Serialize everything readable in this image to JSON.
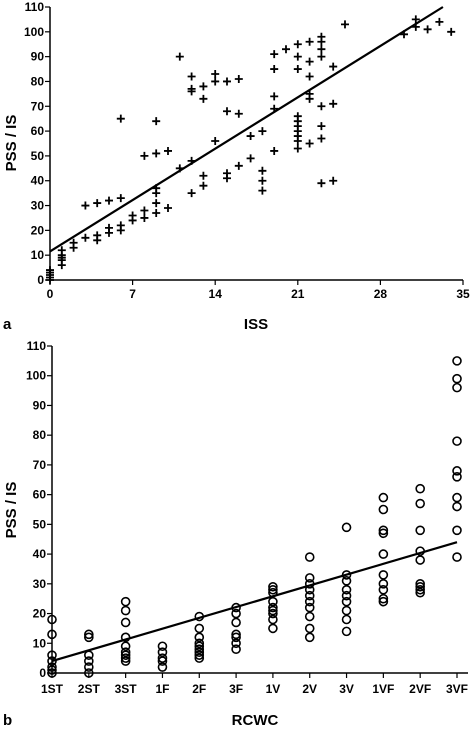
{
  "chart_data": [
    {
      "panel_label": "a",
      "type": "scatter",
      "xlabel": "ISS",
      "ylabel": "PSS / IS",
      "xlim": [
        0,
        35
      ],
      "ylim": [
        0,
        110
      ],
      "xticks": [
        "0",
        "7",
        "14",
        "21",
        "28",
        "35"
      ],
      "yticks": [
        "0",
        "10",
        "20",
        "30",
        "40",
        "50",
        "60",
        "70",
        "80",
        "90",
        "100",
        "110"
      ],
      "marker": "plus",
      "grid": false,
      "points": [
        [
          0,
          0
        ],
        [
          0,
          1
        ],
        [
          0,
          2
        ],
        [
          0,
          3
        ],
        [
          0,
          4
        ],
        [
          1,
          6
        ],
        [
          1,
          8
        ],
        [
          1,
          9
        ],
        [
          1,
          10
        ],
        [
          1,
          12
        ],
        [
          2,
          13
        ],
        [
          2,
          15
        ],
        [
          3,
          17
        ],
        [
          4,
          16
        ],
        [
          4,
          18
        ],
        [
          5,
          19
        ],
        [
          5,
          21
        ],
        [
          6,
          20
        ],
        [
          6,
          22
        ],
        [
          7,
          24
        ],
        [
          7,
          26
        ],
        [
          8,
          25
        ],
        [
          8,
          28
        ],
        [
          9,
          27
        ],
        [
          9,
          31
        ],
        [
          10,
          29
        ],
        [
          3,
          30
        ],
        [
          4,
          31
        ],
        [
          5,
          32
        ],
        [
          6,
          33
        ],
        [
          9,
          35
        ],
        [
          9,
          37
        ],
        [
          8,
          50
        ],
        [
          9,
          51
        ],
        [
          10,
          52
        ],
        [
          6,
          65
        ],
        [
          9,
          64
        ],
        [
          11,
          90
        ],
        [
          11,
          45
        ],
        [
          12,
          48
        ],
        [
          12,
          35
        ],
        [
          13,
          38
        ],
        [
          13,
          42
        ],
        [
          12,
          76
        ],
        [
          12,
          77
        ],
        [
          12,
          82
        ],
        [
          13,
          78
        ],
        [
          13,
          73
        ],
        [
          14,
          80
        ],
        [
          14,
          83
        ],
        [
          15,
          80
        ],
        [
          16,
          81
        ],
        [
          14,
          56
        ],
        [
          15,
          68
        ],
        [
          16,
          67
        ],
        [
          15,
          41
        ],
        [
          15,
          43
        ],
        [
          16,
          46
        ],
        [
          17,
          49
        ],
        [
          17,
          58
        ],
        [
          18,
          60
        ],
        [
          18,
          44
        ],
        [
          18,
          40
        ],
        [
          18,
          36
        ],
        [
          19,
          52
        ],
        [
          19,
          69
        ],
        [
          19,
          74
        ],
        [
          19,
          85
        ],
        [
          19,
          91
        ],
        [
          20,
          93
        ],
        [
          21,
          95
        ],
        [
          21,
          90
        ],
        [
          21,
          85
        ],
        [
          22,
          82
        ],
        [
          22,
          88
        ],
        [
          22,
          96
        ],
        [
          23,
          93
        ],
        [
          23,
          90
        ],
        [
          23,
          96
        ],
        [
          23,
          98
        ],
        [
          24,
          86
        ],
        [
          25,
          103
        ],
        [
          21,
          53
        ],
        [
          21,
          56
        ],
        [
          21,
          58
        ],
        [
          21,
          60
        ],
        [
          21,
          62
        ],
        [
          21,
          64
        ],
        [
          21,
          66
        ],
        [
          22,
          75
        ],
        [
          22,
          73
        ],
        [
          22,
          55
        ],
        [
          23,
          57
        ],
        [
          23,
          62
        ],
        [
          23,
          70
        ],
        [
          24,
          71
        ],
        [
          23,
          39
        ],
        [
          24,
          40
        ],
        [
          30,
          99
        ],
        [
          31,
          102
        ],
        [
          31,
          105
        ],
        [
          32,
          101
        ],
        [
          33,
          104
        ],
        [
          34,
          100
        ]
      ],
      "regression_line": {
        "x": [
          0,
          33.3
        ],
        "y": [
          11.5,
          110
        ]
      }
    },
    {
      "panel_label": "b",
      "type": "scatter",
      "xlabel": "RCWC",
      "ylabel": "PSS / IS",
      "categories": [
        "1ST",
        "2ST",
        "3ST",
        "1F",
        "2F",
        "3F",
        "1V",
        "2V",
        "3V",
        "1VF",
        "2VF",
        "3VF"
      ],
      "ylim": [
        0,
        110
      ],
      "yticks": [
        "0",
        "10",
        "20",
        "30",
        "40",
        "50",
        "60",
        "70",
        "80",
        "90",
        "100",
        "110"
      ],
      "marker": "circle",
      "grid": false,
      "points": [
        [
          "1ST",
          0
        ],
        [
          "1ST",
          1
        ],
        [
          "1ST",
          2
        ],
        [
          "1ST",
          4
        ],
        [
          "1ST",
          6
        ],
        [
          "1ST",
          13
        ],
        [
          "1ST",
          18
        ],
        [
          "2ST",
          0
        ],
        [
          "2ST",
          2
        ],
        [
          "2ST",
          4
        ],
        [
          "2ST",
          6
        ],
        [
          "2ST",
          12
        ],
        [
          "2ST",
          13
        ],
        [
          "3ST",
          4
        ],
        [
          "3ST",
          5
        ],
        [
          "3ST",
          6
        ],
        [
          "3ST",
          7
        ],
        [
          "3ST",
          9
        ],
        [
          "3ST",
          12
        ],
        [
          "3ST",
          17
        ],
        [
          "3ST",
          21
        ],
        [
          "3ST",
          24
        ],
        [
          "1F",
          2
        ],
        [
          "1F",
          4
        ],
        [
          "1F",
          5
        ],
        [
          "1F",
          7
        ],
        [
          "1F",
          9
        ],
        [
          "2F",
          5
        ],
        [
          "2F",
          6
        ],
        [
          "2F",
          7
        ],
        [
          "2F",
          8
        ],
        [
          "2F",
          9
        ],
        [
          "2F",
          10
        ],
        [
          "2F",
          12
        ],
        [
          "2F",
          15
        ],
        [
          "2F",
          19
        ],
        [
          "3F",
          8
        ],
        [
          "3F",
          10
        ],
        [
          "3F",
          12
        ],
        [
          "3F",
          13
        ],
        [
          "3F",
          17
        ],
        [
          "3F",
          20
        ],
        [
          "3F",
          22
        ],
        [
          "1V",
          15
        ],
        [
          "1V",
          18
        ],
        [
          "1V",
          20
        ],
        [
          "1V",
          21
        ],
        [
          "1V",
          22
        ],
        [
          "1V",
          24
        ],
        [
          "1V",
          27
        ],
        [
          "1V",
          28
        ],
        [
          "1V",
          29
        ],
        [
          "2V",
          12
        ],
        [
          "2V",
          15
        ],
        [
          "2V",
          19
        ],
        [
          "2V",
          22
        ],
        [
          "2V",
          24
        ],
        [
          "2V",
          26
        ],
        [
          "2V",
          28
        ],
        [
          "2V",
          30
        ],
        [
          "2V",
          32
        ],
        [
          "2V",
          39
        ],
        [
          "3V",
          14
        ],
        [
          "3V",
          18
        ],
        [
          "3V",
          21
        ],
        [
          "3V",
          24
        ],
        [
          "3V",
          26
        ],
        [
          "3V",
          28
        ],
        [
          "3V",
          31
        ],
        [
          "3V",
          33
        ],
        [
          "3V",
          49
        ],
        [
          "1VF",
          24
        ],
        [
          "1VF",
          25
        ],
        [
          "1VF",
          28
        ],
        [
          "1VF",
          30
        ],
        [
          "1VF",
          33
        ],
        [
          "1VF",
          40
        ],
        [
          "1VF",
          47
        ],
        [
          "1VF",
          48
        ],
        [
          "1VF",
          55
        ],
        [
          "1VF",
          59
        ],
        [
          "2VF",
          27
        ],
        [
          "2VF",
          28
        ],
        [
          "2VF",
          29
        ],
        [
          "2VF",
          30
        ],
        [
          "2VF",
          38
        ],
        [
          "2VF",
          41
        ],
        [
          "2VF",
          48
        ],
        [
          "2VF",
          57
        ],
        [
          "2VF",
          62
        ],
        [
          "3VF",
          39
        ],
        [
          "3VF",
          48
        ],
        [
          "3VF",
          56
        ],
        [
          "3VF",
          59
        ],
        [
          "3VF",
          66
        ],
        [
          "3VF",
          68
        ],
        [
          "3VF",
          78
        ],
        [
          "3VF",
          96
        ],
        [
          "3VF",
          99
        ],
        [
          "3VF",
          105
        ]
      ],
      "regression_line": {
        "x": [
          "1ST",
          "3VF"
        ],
        "y": [
          4,
          44
        ]
      }
    }
  ]
}
